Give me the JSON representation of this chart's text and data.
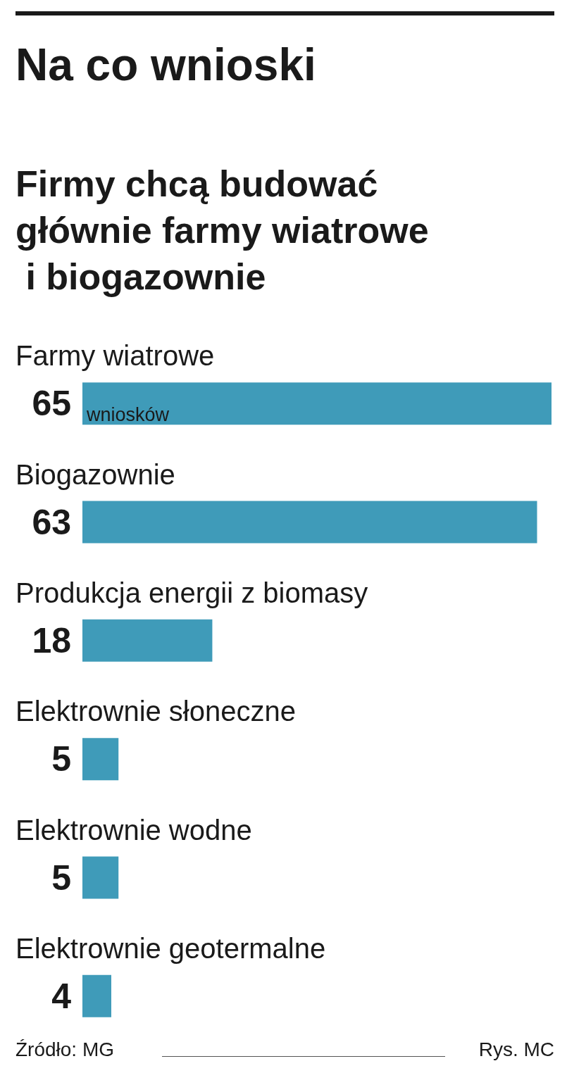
{
  "chart_data": {
    "type": "bar",
    "orientation": "horizontal",
    "title": "Na co wnioski",
    "subtitle": "Firmy chcą budować głównie farmy wiatrowe i biogazownie",
    "categories": [
      "Farmy wiatrowe",
      "Biogazownie",
      "Produkcja energii z biomasy",
      "Elektrownie słoneczne",
      "Elektrownie wodne",
      "Elektrownie geotermalne"
    ],
    "values": [
      65,
      63,
      18,
      5,
      5,
      4
    ],
    "color": "#3f9bb9",
    "data_labels": true,
    "annotations": [
      "wniosków",
      "Źródło: MG",
      "Rys. MC"
    ]
  }
}
